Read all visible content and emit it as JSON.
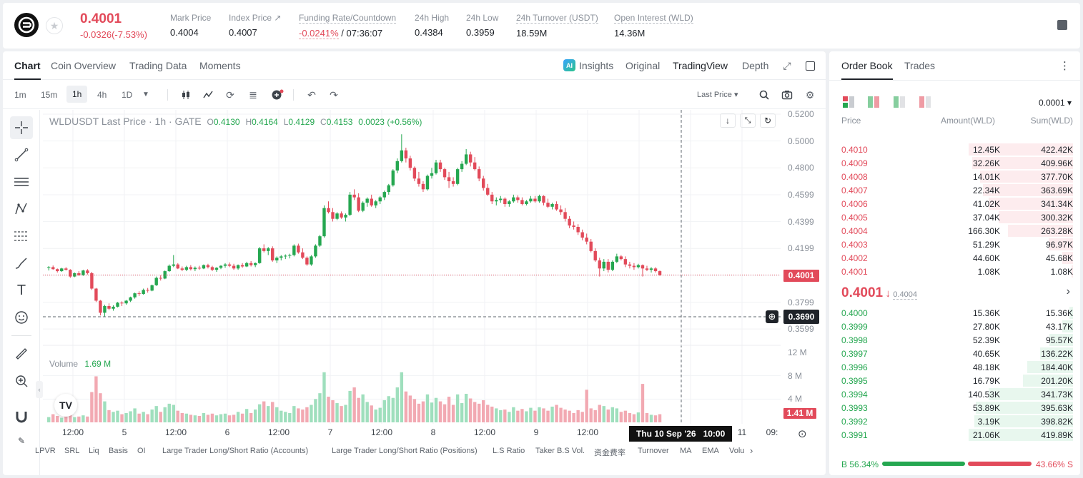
{
  "ticker": {
    "last_price": "0.4001",
    "change": "-0.0326(-7.53%)"
  },
  "stats": [
    {
      "label": "Mark Price",
      "value": "0.4004"
    },
    {
      "label": "Index Price ↗",
      "value": "0.4007"
    },
    {
      "label": "Funding Rate/Countdown",
      "value": "-0.0241%",
      "value2": "/ 07:36:07"
    },
    {
      "label": "24h High",
      "value": "0.4384"
    },
    {
      "label": "24h Low",
      "value": "0.3959"
    },
    {
      "label": "24h Turnover (USDT)",
      "value": "18.59M"
    },
    {
      "label": "Open Interest (WLD)",
      "value": "14.36M"
    }
  ],
  "chart_tabs": [
    "Chart",
    "Coin Overview",
    "Trading Data",
    "Moments"
  ],
  "view_tabs": [
    "Insights",
    "Original",
    "TradingView",
    "Depth"
  ],
  "ai_badge": "AI",
  "timeframes": [
    "1m",
    "15m",
    "1h",
    "4h",
    "1D"
  ],
  "price_type": "Last Price",
  "legend": {
    "title": "WLDUSDT Last Price · 1h · GATE",
    "o_lbl": "O",
    "o": "0.4130",
    "h_lbl": "H",
    "h": "0.4164",
    "l_lbl": "L",
    "l": "0.4129",
    "c_lbl": "C",
    "c": "0.4153",
    "change": "0.0023 (+0.56%)"
  },
  "volume_legend": {
    "label": "Volume",
    "value": "1.69 M"
  },
  "crosshair": {
    "price": "0.3690",
    "time": "Thu 10 Sep '26",
    "time2": "10:00"
  },
  "price_axis": [
    "0.5200",
    "0.5000",
    "0.4800",
    "0.4599",
    "0.4399",
    "0.4199",
    "0.3799",
    "0.3599"
  ],
  "volume_axis": [
    "12 M",
    "8 M",
    "4 M"
  ],
  "volume_current": "1.41 M",
  "time_axis": [
    "12:00",
    "5",
    "12:00",
    "6",
    "12:00",
    "7",
    "12:00",
    "8",
    "12:00",
    "9",
    "12:00",
    "11",
    "09:"
  ],
  "indicators": [
    "LPVR",
    "SRL",
    "Liq",
    "Basis",
    "OI",
    "Large Trader Long/Short Ratio (Accounts)",
    "Large Trader Long/Short Ratio (Positions)",
    "L.S Ratio",
    "Taker B.S Vol.",
    "资金费率",
    "Turnover",
    "MA",
    "EMA",
    "Volu"
  ],
  "chart_data": {
    "type": "candlestick",
    "title": "WLDUSDT Last Price · 1h · GATE",
    "ylim": [
      0.352,
      0.52
    ],
    "volume_ylim": [
      0,
      12
    ],
    "last_price": 0.4001,
    "candles": [
      [
        0.4055,
        0.4068,
        0.4035,
        0.406,
        0.9
      ],
      [
        0.406,
        0.4072,
        0.404,
        0.4045,
        1.4
      ],
      [
        0.4045,
        0.405,
        0.402,
        0.403,
        1.1
      ],
      [
        0.403,
        0.4055,
        0.4025,
        0.405,
        0.8
      ],
      [
        0.405,
        0.406,
        0.4035,
        0.404,
        1.0
      ],
      [
        0.404,
        0.4045,
        0.398,
        0.399,
        1.6
      ],
      [
        0.399,
        0.402,
        0.3985,
        0.4015,
        0.9
      ],
      [
        0.4015,
        0.403,
        0.3995,
        0.4,
        1.0
      ],
      [
        0.4,
        0.404,
        0.3995,
        0.4035,
        1.2
      ],
      [
        0.4035,
        0.4045,
        0.4005,
        0.4015,
        1.0
      ],
      [
        0.4015,
        0.4025,
        0.389,
        0.39,
        5.2
      ],
      [
        0.39,
        0.3905,
        0.38,
        0.381,
        7.9
      ],
      [
        0.381,
        0.3815,
        0.37,
        0.372,
        5.0
      ],
      [
        0.372,
        0.378,
        0.369,
        0.377,
        3.6
      ],
      [
        0.377,
        0.379,
        0.374,
        0.375,
        2.1
      ],
      [
        0.375,
        0.3775,
        0.3735,
        0.3765,
        1.8
      ],
      [
        0.3765,
        0.38,
        0.376,
        0.3795,
        2.0
      ],
      [
        0.3795,
        0.3805,
        0.377,
        0.379,
        1.4
      ],
      [
        0.379,
        0.3815,
        0.378,
        0.381,
        1.6
      ],
      [
        0.381,
        0.384,
        0.38,
        0.3835,
        1.9
      ],
      [
        0.3835,
        0.387,
        0.3825,
        0.3865,
        2.4
      ],
      [
        0.3865,
        0.388,
        0.3845,
        0.386,
        1.5
      ],
      [
        0.386,
        0.39,
        0.3855,
        0.389,
        1.8
      ],
      [
        0.389,
        0.3905,
        0.387,
        0.3885,
        1.4
      ],
      [
        0.3885,
        0.393,
        0.388,
        0.3925,
        2.2
      ],
      [
        0.3925,
        0.399,
        0.392,
        0.398,
        2.8
      ],
      [
        0.398,
        0.4,
        0.396,
        0.3975,
        1.8
      ],
      [
        0.3975,
        0.4035,
        0.397,
        0.403,
        2.6
      ],
      [
        0.403,
        0.408,
        0.4025,
        0.407,
        3.2
      ],
      [
        0.407,
        0.415,
        0.406,
        0.408,
        3.0
      ],
      [
        0.408,
        0.409,
        0.4045,
        0.405,
        2.0
      ],
      [
        0.405,
        0.4065,
        0.403,
        0.404,
        1.6
      ],
      [
        0.404,
        0.407,
        0.403,
        0.406,
        1.5
      ],
      [
        0.406,
        0.4075,
        0.4035,
        0.4045,
        1.3
      ],
      [
        0.4045,
        0.4065,
        0.403,
        0.4055,
        1.2
      ],
      [
        0.4055,
        0.407,
        0.404,
        0.405,
        1.1
      ],
      [
        0.405,
        0.408,
        0.4045,
        0.4075,
        1.6
      ],
      [
        0.4075,
        0.4085,
        0.405,
        0.406,
        1.3
      ],
      [
        0.406,
        0.407,
        0.403,
        0.404,
        1.5
      ],
      [
        0.404,
        0.406,
        0.4025,
        0.4055,
        1.2
      ],
      [
        0.4055,
        0.4075,
        0.4045,
        0.407,
        1.4
      ],
      [
        0.407,
        0.409,
        0.4055,
        0.408,
        1.5
      ],
      [
        0.408,
        0.4095,
        0.406,
        0.407,
        1.2
      ],
      [
        0.407,
        0.4085,
        0.404,
        0.405,
        1.3
      ],
      [
        0.405,
        0.408,
        0.404,
        0.4075,
        1.8
      ],
      [
        0.4075,
        0.409,
        0.4055,
        0.4065,
        1.5
      ],
      [
        0.4065,
        0.41,
        0.406,
        0.409,
        2.3
      ],
      [
        0.409,
        0.4105,
        0.4065,
        0.4075,
        1.6
      ],
      [
        0.4075,
        0.4095,
        0.406,
        0.409,
        2.2
      ],
      [
        0.409,
        0.421,
        0.4085,
        0.42,
        3.1
      ],
      [
        0.42,
        0.423,
        0.417,
        0.418,
        3.6
      ],
      [
        0.418,
        0.421,
        0.415,
        0.42,
        2.8
      ],
      [
        0.42,
        0.4215,
        0.41,
        0.411,
        3.5
      ],
      [
        0.411,
        0.414,
        0.409,
        0.413,
        2.6
      ],
      [
        0.413,
        0.415,
        0.411,
        0.414,
        2.0
      ],
      [
        0.414,
        0.4155,
        0.412,
        0.4145,
        1.8
      ],
      [
        0.4145,
        0.416,
        0.4125,
        0.415,
        1.6
      ],
      [
        0.415,
        0.423,
        0.414,
        0.422,
        2.8
      ],
      [
        0.422,
        0.4235,
        0.416,
        0.417,
        2.4
      ],
      [
        0.417,
        0.42,
        0.412,
        0.413,
        2.2
      ],
      [
        0.413,
        0.414,
        0.407,
        0.408,
        2.6
      ],
      [
        0.408,
        0.415,
        0.407,
        0.414,
        3.0
      ],
      [
        0.414,
        0.423,
        0.413,
        0.422,
        4.0
      ],
      [
        0.422,
        0.43,
        0.421,
        0.429,
        5.0
      ],
      [
        0.429,
        0.452,
        0.428,
        0.45,
        8.6
      ],
      [
        0.45,
        0.455,
        0.446,
        0.447,
        4.4
      ],
      [
        0.447,
        0.45,
        0.44,
        0.442,
        3.8
      ],
      [
        0.442,
        0.447,
        0.441,
        0.446,
        3.3
      ],
      [
        0.446,
        0.4475,
        0.442,
        0.443,
        2.8
      ],
      [
        0.443,
        0.446,
        0.44,
        0.445,
        3.0
      ],
      [
        0.445,
        0.462,
        0.444,
        0.46,
        5.4
      ],
      [
        0.46,
        0.464,
        0.456,
        0.458,
        6.0
      ],
      [
        0.458,
        0.461,
        0.447,
        0.448,
        4.2
      ],
      [
        0.448,
        0.455,
        0.447,
        0.454,
        4.8
      ],
      [
        0.454,
        0.458,
        0.451,
        0.457,
        3.5
      ],
      [
        0.457,
        0.46,
        0.451,
        0.452,
        2.9
      ],
      [
        0.452,
        0.456,
        0.45,
        0.455,
        2.2
      ],
      [
        0.455,
        0.459,
        0.453,
        0.458,
        2.5
      ],
      [
        0.458,
        0.463,
        0.456,
        0.462,
        3.8
      ],
      [
        0.462,
        0.468,
        0.46,
        0.467,
        4.5
      ],
      [
        0.467,
        0.479,
        0.466,
        0.478,
        4.2
      ],
      [
        0.478,
        0.487,
        0.476,
        0.485,
        6.0
      ],
      [
        0.485,
        0.505,
        0.484,
        0.493,
        8.6
      ],
      [
        0.493,
        0.495,
        0.484,
        0.487,
        5.3
      ],
      [
        0.487,
        0.489,
        0.478,
        0.48,
        4.6
      ],
      [
        0.48,
        0.481,
        0.47,
        0.472,
        4.0
      ],
      [
        0.472,
        0.477,
        0.466,
        0.468,
        3.2
      ],
      [
        0.468,
        0.47,
        0.462,
        0.464,
        3.6
      ],
      [
        0.464,
        0.475,
        0.463,
        0.474,
        4.8
      ],
      [
        0.474,
        0.48,
        0.472,
        0.476,
        3.4
      ],
      [
        0.476,
        0.486,
        0.475,
        0.484,
        4.2
      ],
      [
        0.484,
        0.486,
        0.477,
        0.479,
        3.6
      ],
      [
        0.479,
        0.48,
        0.471,
        0.473,
        3.1
      ],
      [
        0.473,
        0.477,
        0.465,
        0.47,
        4.4
      ],
      [
        0.47,
        0.473,
        0.466,
        0.468,
        3.0
      ],
      [
        0.468,
        0.48,
        0.467,
        0.479,
        4.8
      ],
      [
        0.479,
        0.485,
        0.477,
        0.483,
        3.3
      ],
      [
        0.483,
        0.494,
        0.482,
        0.49,
        4.9
      ],
      [
        0.49,
        0.492,
        0.481,
        0.484,
        4.1
      ],
      [
        0.484,
        0.488,
        0.478,
        0.479,
        3.5
      ],
      [
        0.479,
        0.481,
        0.47,
        0.472,
        3.2
      ],
      [
        0.472,
        0.474,
        0.463,
        0.465,
        3.8
      ],
      [
        0.465,
        0.468,
        0.459,
        0.46,
        3.0
      ],
      [
        0.46,
        0.462,
        0.453,
        0.455,
        2.7
      ],
      [
        0.455,
        0.458,
        0.452,
        0.456,
        2.4
      ],
      [
        0.456,
        0.459,
        0.454,
        0.457,
        2.1
      ],
      [
        0.457,
        0.458,
        0.451,
        0.453,
        2.2
      ],
      [
        0.453,
        0.456,
        0.451,
        0.455,
        1.8
      ],
      [
        0.455,
        0.46,
        0.454,
        0.458,
        2.6
      ],
      [
        0.458,
        0.4595,
        0.454,
        0.456,
        2.0
      ],
      [
        0.456,
        0.458,
        0.452,
        0.453,
        2.3
      ],
      [
        0.453,
        0.456,
        0.452,
        0.455,
        1.9
      ],
      [
        0.455,
        0.459,
        0.454,
        0.457,
        2.5
      ],
      [
        0.457,
        0.459,
        0.454,
        0.455,
        2.0
      ],
      [
        0.455,
        0.46,
        0.454,
        0.459,
        2.6
      ],
      [
        0.459,
        0.4595,
        0.452,
        0.454,
        2.4
      ],
      [
        0.454,
        0.457,
        0.45,
        0.451,
        2.0
      ],
      [
        0.451,
        0.454,
        0.449,
        0.453,
        2.7
      ],
      [
        0.453,
        0.455,
        0.448,
        0.449,
        3.0
      ],
      [
        0.449,
        0.452,
        0.445,
        0.447,
        2.5
      ],
      [
        0.447,
        0.45,
        0.44,
        0.442,
        2.2
      ],
      [
        0.442,
        0.444,
        0.435,
        0.437,
        2.0
      ],
      [
        0.437,
        0.44,
        0.434,
        0.436,
        1.6
      ],
      [
        0.436,
        0.438,
        0.43,
        0.432,
        2.1
      ],
      [
        0.432,
        0.434,
        0.426,
        0.428,
        1.8
      ],
      [
        0.428,
        0.431,
        0.423,
        0.425,
        5.6
      ],
      [
        0.425,
        0.427,
        0.417,
        0.418,
        2.4
      ],
      [
        0.418,
        0.42,
        0.41,
        0.411,
        2.1
      ],
      [
        0.411,
        0.413,
        0.399,
        0.405,
        3.0
      ],
      [
        0.405,
        0.412,
        0.403,
        0.41,
        2.8
      ],
      [
        0.41,
        0.412,
        0.402,
        0.404,
        2.2
      ],
      [
        0.404,
        0.411,
        0.403,
        0.41,
        2.6
      ],
      [
        0.41,
        0.416,
        0.409,
        0.414,
        2.4
      ],
      [
        0.414,
        0.415,
        0.411,
        0.412,
        1.8
      ],
      [
        0.412,
        0.414,
        0.406,
        0.408,
        2.0
      ],
      [
        0.408,
        0.41,
        0.405,
        0.407,
        1.6
      ],
      [
        0.407,
        0.409,
        0.404,
        0.406,
        1.4
      ],
      [
        0.406,
        0.4085,
        0.405,
        0.4075,
        1.7
      ],
      [
        0.4075,
        0.408,
        0.399,
        0.405,
        6.6
      ],
      [
        0.405,
        0.407,
        0.403,
        0.404,
        1.6
      ],
      [
        0.404,
        0.406,
        0.402,
        0.405,
        1.3
      ],
      [
        0.405,
        0.406,
        0.402,
        0.403,
        1.2
      ],
      [
        0.403,
        0.4035,
        0.3995,
        0.4001,
        1.4
      ]
    ]
  },
  "orderbook": {
    "tabs": [
      "Order Book",
      "Trades"
    ],
    "precision": "0.0001",
    "headers": {
      "price": "Price",
      "amount": "Amount(WLD)",
      "sum": "Sum(WLD)"
    },
    "asks": [
      {
        "price": "0.4010",
        "amount": "12.45K",
        "sum": "422.42K",
        "depth": 0.94
      },
      {
        "price": "0.4009",
        "amount": "32.26K",
        "sum": "409.96K",
        "depth": 0.91
      },
      {
        "price": "0.4008",
        "amount": "14.01K",
        "sum": "377.70K",
        "depth": 0.84
      },
      {
        "price": "0.4007",
        "amount": "22.34K",
        "sum": "363.69K",
        "depth": 0.81
      },
      {
        "price": "0.4006",
        "amount": "41.02K",
        "sum": "341.34K",
        "depth": 0.76
      },
      {
        "price": "0.4005",
        "amount": "37.04K",
        "sum": "300.32K",
        "depth": 0.67
      },
      {
        "price": "0.4004",
        "amount": "166.30K",
        "sum": "263.28K",
        "depth": 0.59
      },
      {
        "price": "0.4003",
        "amount": "51.29K",
        "sum": "96.97K",
        "depth": 0.22
      },
      {
        "price": "0.4002",
        "amount": "44.60K",
        "sum": "45.68K",
        "depth": 0.1
      },
      {
        "price": "0.4001",
        "amount": "1.08K",
        "sum": "1.08K",
        "depth": 0.01
      }
    ],
    "mid": {
      "price": "0.4001",
      "arrow": "↓",
      "mark": "0.4004"
    },
    "bids": [
      {
        "price": "0.4000",
        "amount": "15.36K",
        "sum": "15.36K",
        "depth": 0.03
      },
      {
        "price": "0.3999",
        "amount": "27.80K",
        "sum": "43.17K",
        "depth": 0.1
      },
      {
        "price": "0.3998",
        "amount": "52.39K",
        "sum": "95.57K",
        "depth": 0.21
      },
      {
        "price": "0.3997",
        "amount": "40.65K",
        "sum": "136.22K",
        "depth": 0.3
      },
      {
        "price": "0.3996",
        "amount": "48.18K",
        "sum": "184.40K",
        "depth": 0.41
      },
      {
        "price": "0.3995",
        "amount": "16.79K",
        "sum": "201.20K",
        "depth": 0.45
      },
      {
        "price": "0.3994",
        "amount": "140.53K",
        "sum": "341.73K",
        "depth": 0.76
      },
      {
        "price": "0.3993",
        "amount": "53.89K",
        "sum": "395.63K",
        "depth": 0.88
      },
      {
        "price": "0.3992",
        "amount": "3.19K",
        "sum": "398.82K",
        "depth": 0.89
      },
      {
        "price": "0.3991",
        "amount": "21.06K",
        "sum": "419.89K",
        "depth": 0.94
      }
    ],
    "ratio": {
      "buy_label": "B",
      "buy": "56.34%",
      "sell": "43.66%",
      "sell_label": "S",
      "buy_fraction": 0.5634
    }
  },
  "colors": {
    "up": "#25a750",
    "down": "#e24a5a",
    "up_vol": "#9fdfbd",
    "down_vol": "#f2a9b2"
  }
}
